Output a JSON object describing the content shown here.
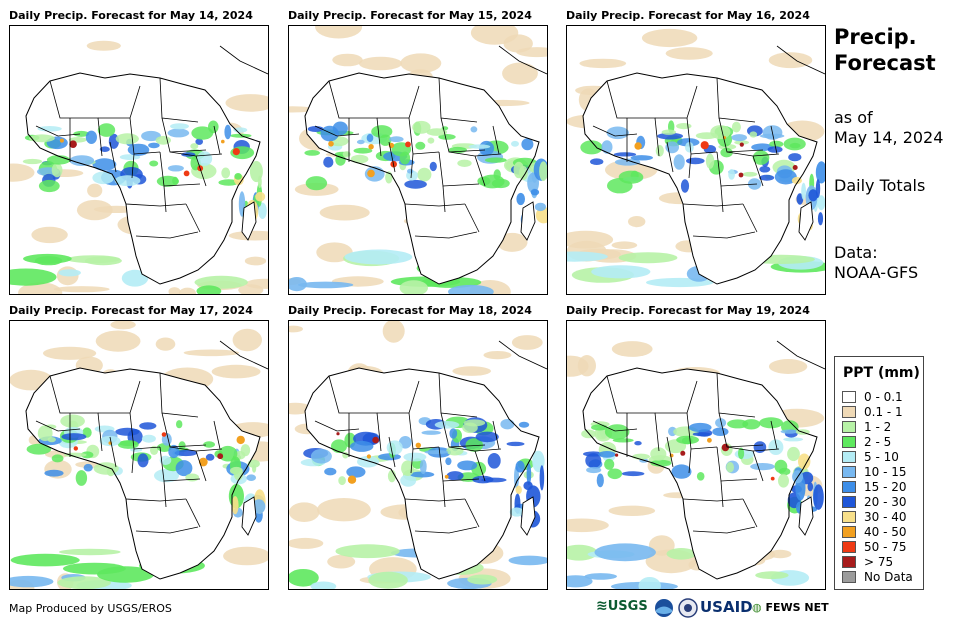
{
  "panels": [
    {
      "title": "Daily Precip. Forecast for May 14, 2024",
      "seed": 14
    },
    {
      "title": "Daily Precip. Forecast for May 15, 2024",
      "seed": 15
    },
    {
      "title": "Daily Precip. Forecast for May 16, 2024",
      "seed": 16
    },
    {
      "title": "Daily Precip. Forecast for May 17, 2024",
      "seed": 17
    },
    {
      "title": "Daily Precip. Forecast for May 18, 2024",
      "seed": 18
    },
    {
      "title": "Daily Precip. Forecast for May 19, 2024",
      "seed": 19
    }
  ],
  "side": {
    "title_line1": "Precip.",
    "title_line2": "Forecast",
    "asof_line1": "as of",
    "asof_line2": "May 14, 2024",
    "totals": "Daily Totals",
    "data_line1": "Data:",
    "data_line2": "NOAA-GFS"
  },
  "legend": {
    "title": "PPT (mm)",
    "items": [
      {
        "label": "0 - 0.1",
        "color": "#ffffff"
      },
      {
        "label": "0.1 - 1",
        "color": "#efd9b6"
      },
      {
        "label": "1 - 2",
        "color": "#b7f2a6"
      },
      {
        "label": "2 - 5",
        "color": "#5ee85e"
      },
      {
        "label": "5 - 10",
        "color": "#b4ecf5"
      },
      {
        "label": "10 - 15",
        "color": "#78b8f0"
      },
      {
        "label": "15 - 20",
        "color": "#3d8ee8"
      },
      {
        "label": "20 - 30",
        "color": "#1e56d8"
      },
      {
        "label": "30 - 40",
        "color": "#f8e08a"
      },
      {
        "label": "40 - 50",
        "color": "#f2a020"
      },
      {
        "label": "50 - 75",
        "color": "#ef3a14"
      },
      {
        "label": "> 75",
        "color": "#a71c1c"
      },
      {
        "label": "No Data",
        "color": "#9c9c9c"
      }
    ]
  },
  "footer": {
    "credit": "Map Produced by USGS/EROS",
    "logo_usgs": "USGS",
    "logo_usaid": "USAID",
    "logo_fewsnet": "FEWS NET"
  }
}
